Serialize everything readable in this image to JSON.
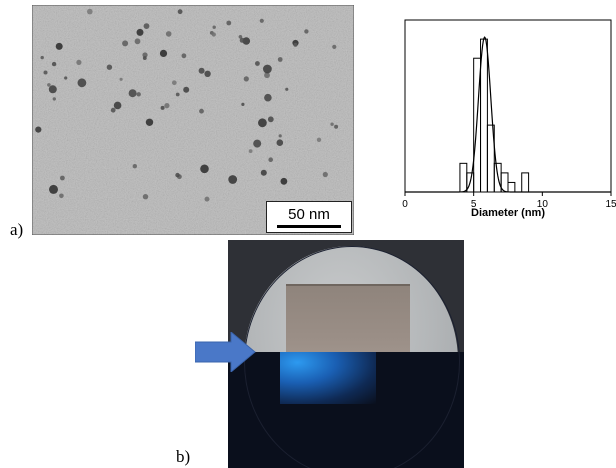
{
  "panels": {
    "a_label": "a)",
    "b_label": "b)"
  },
  "tem": {
    "scale_bar_text": "50 nm",
    "background_color": "#bdbdbd"
  },
  "photo": {
    "arrow_color": "#4a78c8",
    "glow_color": "#2a8fe8"
  },
  "chart_data": {
    "type": "bar",
    "xlabel": "Diameter (nm)",
    "ylabel": "",
    "title": "",
    "xlim": [
      0,
      15
    ],
    "xticks": [
      0,
      5,
      10,
      15
    ],
    "bins": [
      {
        "x0": 4.0,
        "x1": 4.5,
        "count": 3
      },
      {
        "x0": 4.5,
        "x1": 5.0,
        "count": 2
      },
      {
        "x0": 5.0,
        "x1": 5.5,
        "count": 14
      },
      {
        "x0": 5.5,
        "x1": 6.0,
        "count": 16
      },
      {
        "x0": 6.0,
        "x1": 6.5,
        "count": 7
      },
      {
        "x0": 6.5,
        "x1": 7.0,
        "count": 3
      },
      {
        "x0": 7.0,
        "x1": 7.5,
        "count": 2
      },
      {
        "x0": 7.5,
        "x1": 8.0,
        "count": 1
      },
      {
        "x0": 8.5,
        "x1": 9.0,
        "count": 2
      }
    ],
    "fit": {
      "type": "gaussian",
      "mean": 5.8,
      "sigma": 0.45,
      "peak": 16.2
    },
    "ymax": 18
  }
}
